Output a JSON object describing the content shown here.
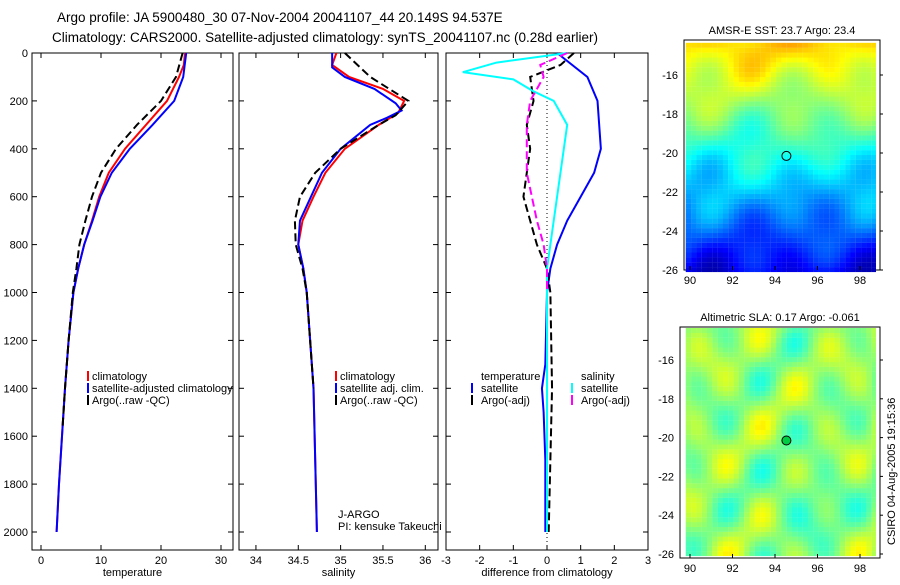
{
  "title": {
    "line1": "Argo profile: JA 5900480_30 07-Nov-2004 20041107_44 20.149S 94.537E",
    "line2": "Climatology: CARS2000. Satellite-adjusted climatology: synTS_20041107.nc (0.28d earlier)"
  },
  "side_text": "CSIRO 04-Aug-2005 19:15:36",
  "colors": {
    "climatology": "#ff0000",
    "satellite": "#0000ff",
    "argo": "#000000",
    "sal_satellite": "#00ffff",
    "sal_argo": "#ff00ff"
  },
  "chart_data": [
    {
      "type": "line",
      "xlabel": "temperature",
      "xlim": [
        -1.5,
        32
      ],
      "xticks": [
        0,
        10,
        20,
        30
      ],
      "ylim": [
        2000,
        0
      ],
      "yticks": [
        0,
        200,
        400,
        600,
        800,
        1000,
        1200,
        1400,
        1600,
        1800,
        2000
      ],
      "legend": [
        "climatology",
        "satellite-adjusted climatology",
        "Argo(..raw -QC)"
      ],
      "series": [
        {
          "name": "climatology",
          "color": "#ff0000",
          "points": [
            [
              0,
              24
            ],
            [
              50,
              23.8
            ],
            [
              100,
              23
            ],
            [
              200,
              21
            ],
            [
              300,
              17.5
            ],
            [
              400,
              14
            ],
            [
              500,
              11.3
            ],
            [
              600,
              9.7
            ],
            [
              700,
              8.5
            ],
            [
              800,
              7.2
            ],
            [
              900,
              6.2
            ],
            [
              1000,
              5.4
            ],
            [
              1200,
              4.6
            ],
            [
              1400,
              4
            ],
            [
              1600,
              3.5
            ],
            [
              1800,
              3
            ],
            [
              2000,
              2.6
            ]
          ]
        },
        {
          "name": "satellite",
          "color": "#0000ff",
          "points": [
            [
              0,
              24.2
            ],
            [
              100,
              23.7
            ],
            [
              200,
              22.2
            ],
            [
              300,
              18.6
            ],
            [
              400,
              14.8
            ],
            [
              500,
              11.8
            ],
            [
              600,
              9.9
            ],
            [
              700,
              8.6
            ],
            [
              800,
              7.2
            ],
            [
              900,
              6.2
            ],
            [
              1000,
              5.4
            ],
            [
              1200,
              4.6
            ],
            [
              1400,
              4
            ],
            [
              1600,
              3.5
            ],
            [
              1800,
              3
            ],
            [
              2000,
              2.6
            ]
          ]
        },
        {
          "name": "argo",
          "color": "#000000",
          "dash": true,
          "points": [
            [
              0,
              23.6
            ],
            [
              100,
              22.5
            ],
            [
              200,
              20
            ],
            [
              300,
              16
            ],
            [
              400,
              12.5
            ],
            [
              500,
              10
            ],
            [
              600,
              8.5
            ],
            [
              700,
              7.4
            ],
            [
              800,
              6.4
            ],
            [
              900,
              5.9
            ],
            [
              1000,
              5.3
            ],
            [
              1200,
              4.6
            ],
            [
              1400,
              4
            ],
            [
              1560,
              3.6
            ]
          ]
        }
      ],
      "annotation": []
    },
    {
      "type": "line",
      "xlabel": "salinity",
      "xlim": [
        33.8,
        36.15
      ],
      "xticks": [
        34,
        34.5,
        35,
        35.5,
        36
      ],
      "ylim": [
        2000,
        0
      ],
      "legend": [
        "climatology",
        "satellite adj. clim.",
        "Argo(..raw -QC)"
      ],
      "series": [
        {
          "name": "climatology",
          "color": "#ff0000",
          "points": [
            [
              0,
              34.95
            ],
            [
              50,
              34.9
            ],
            [
              100,
              35.1
            ],
            [
              150,
              35.5
            ],
            [
              200,
              35.75
            ],
            [
              250,
              35.68
            ],
            [
              300,
              35.45
            ],
            [
              400,
              35.05
            ],
            [
              500,
              34.82
            ],
            [
              600,
              34.68
            ],
            [
              700,
              34.55
            ],
            [
              800,
              34.5
            ],
            [
              900,
              34.56
            ],
            [
              1000,
              34.6
            ],
            [
              1400,
              34.68
            ],
            [
              2000,
              34.72
            ]
          ]
        },
        {
          "name": "satellite",
          "color": "#0000ff",
          "points": [
            [
              0,
              34.9
            ],
            [
              60,
              34.9
            ],
            [
              100,
              35.05
            ],
            [
              150,
              35.4
            ],
            [
              210,
              35.65
            ],
            [
              240,
              35.72
            ],
            [
              270,
              35.55
            ],
            [
              300,
              35.35
            ],
            [
              400,
              35.0
            ],
            [
              500,
              34.78
            ],
            [
              600,
              34.65
            ],
            [
              700,
              34.52
            ],
            [
              800,
              34.5
            ],
            [
              900,
              34.56
            ],
            [
              1000,
              34.6
            ],
            [
              1400,
              34.68
            ],
            [
              2000,
              34.72
            ]
          ]
        },
        {
          "name": "argo",
          "color": "#000000",
          "dash": true,
          "points": [
            [
              0,
              35.05
            ],
            [
              100,
              35.35
            ],
            [
              200,
              35.8
            ],
            [
              260,
              35.65
            ],
            [
              300,
              35.45
            ],
            [
              400,
              35.0
            ],
            [
              500,
              34.7
            ],
            [
              600,
              34.52
            ],
            [
              700,
              34.46
            ],
            [
              800,
              34.47
            ],
            [
              900,
              34.55
            ],
            [
              1000,
              34.6
            ],
            [
              1400,
              34.68
            ]
          ]
        }
      ],
      "annotation": [
        "J-ARGO",
        "PI: kensuke Takeuchi"
      ]
    },
    {
      "type": "line",
      "xlabel": "difference from climatology",
      "xlim": [
        -3,
        3
      ],
      "xticks": [
        -3,
        -2,
        -1,
        0,
        1,
        2,
        3
      ],
      "ylim": [
        2000,
        0
      ],
      "legend_temperature": [
        "temperature",
        "satellite",
        "Argo(-adj)"
      ],
      "legend_salinity": [
        "salinity",
        "satellite",
        "Argo(-adj)"
      ],
      "series": [
        {
          "name": "temperature satellite",
          "color": "#0000ff",
          "points": [
            [
              0,
              0.3
            ],
            [
              100,
              1.2
            ],
            [
              200,
              1.5
            ],
            [
              300,
              1.55
            ],
            [
              400,
              1.6
            ],
            [
              500,
              1.4
            ],
            [
              600,
              1.0
            ],
            [
              700,
              0.6
            ],
            [
              800,
              0.3
            ],
            [
              900,
              0.1
            ],
            [
              1000,
              0
            ],
            [
              1300,
              -0.05
            ],
            [
              1400,
              -0.15
            ],
            [
              1500,
              -0.1
            ],
            [
              1700,
              -0.05
            ],
            [
              2000,
              -0.05
            ]
          ]
        },
        {
          "name": "temperature argo",
          "color": "#000000",
          "dash": true,
          "points": [
            [
              0,
              0.8
            ],
            [
              50,
              0.4
            ],
            [
              100,
              -0.5
            ],
            [
              200,
              -0.4
            ],
            [
              300,
              -0.6
            ],
            [
              400,
              -0.5
            ],
            [
              500,
              -0.6
            ],
            [
              600,
              -0.7
            ],
            [
              700,
              -0.5
            ],
            [
              800,
              -0.3
            ],
            [
              900,
              0
            ],
            [
              1000,
              0.1
            ],
            [
              1400,
              0.15
            ],
            [
              2000,
              0.05
            ]
          ]
        },
        {
          "name": "salinity satellite",
          "color": "#00ffff",
          "points": [
            [
              0,
              0.6
            ],
            [
              40,
              -1.5
            ],
            [
              80,
              -2.5
            ],
            [
              110,
              -1.0
            ],
            [
              160,
              -0.4
            ],
            [
              200,
              0.2
            ],
            [
              300,
              0.6
            ],
            [
              400,
              0.5
            ],
            [
              500,
              0.4
            ],
            [
              600,
              0.3
            ],
            [
              700,
              0.2
            ],
            [
              800,
              0.1
            ],
            [
              900,
              0
            ],
            [
              2000,
              0
            ]
          ]
        },
        {
          "name": "salinity argo",
          "color": "#ff00ff",
          "dash": true,
          "points": [
            [
              0,
              0.6
            ],
            [
              50,
              -0.2
            ],
            [
              100,
              -0.1
            ],
            [
              200,
              -0.5
            ],
            [
              300,
              -0.6
            ],
            [
              400,
              -0.6
            ],
            [
              500,
              -0.6
            ],
            [
              600,
              -0.45
            ],
            [
              700,
              -0.3
            ],
            [
              800,
              -0.1
            ],
            [
              900,
              0
            ],
            [
              1000,
              0
            ]
          ]
        }
      ]
    },
    {
      "type": "heatmap",
      "title": "AMSR-E SST: 23.7 Argo: 23.4",
      "xticks": [
        90,
        92,
        94,
        96,
        98
      ],
      "yticks": [
        -16,
        -18,
        -20,
        -22,
        -24,
        -26
      ],
      "marker": [
        94.537,
        -20.149
      ]
    },
    {
      "type": "heatmap",
      "title": "Altimetric SLA: 0.17 Argo: -0.061",
      "xticks": [
        90,
        92,
        94,
        96,
        98
      ],
      "yticks": [
        -16,
        -18,
        -20,
        -22,
        -24,
        -26
      ],
      "marker": [
        94.537,
        -20.149
      ]
    }
  ]
}
